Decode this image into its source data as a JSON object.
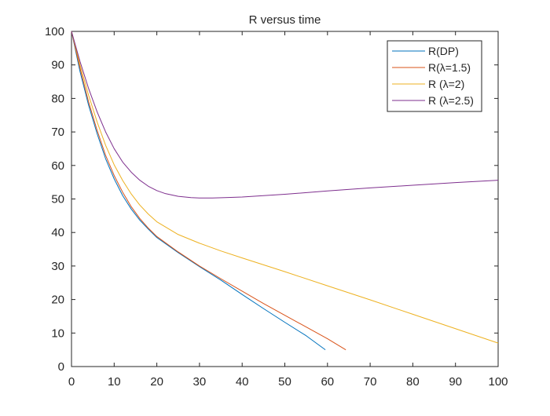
{
  "chart_data": {
    "type": "line",
    "title": "R versus time",
    "xlabel": "",
    "ylabel": "",
    "xlim": [
      0,
      100
    ],
    "ylim": [
      0,
      100
    ],
    "xticks": [
      0,
      10,
      20,
      30,
      40,
      50,
      60,
      70,
      80,
      90,
      100
    ],
    "yticks": [
      0,
      10,
      20,
      30,
      40,
      50,
      60,
      70,
      80,
      90,
      100
    ],
    "grid": false,
    "legend_position": "top-right",
    "series": [
      {
        "name": "R(DP)",
        "color": "#0072BD",
        "x": [
          0,
          2,
          4,
          6,
          8,
          10,
          12,
          14,
          16,
          18,
          20,
          25,
          30,
          35,
          40,
          45,
          50,
          55,
          59.5
        ],
        "y": [
          100,
          88,
          78,
          69.5,
          62,
          56,
          51,
          47,
          43.7,
          41,
          38.5,
          34,
          29.8,
          25.8,
          21.5,
          17.3,
          13.2,
          9.2,
          5
        ]
      },
      {
        "name": "R(λ=1.5)",
        "color": "#D95319",
        "x": [
          0,
          2,
          4,
          6,
          8,
          10,
          12,
          14,
          16,
          18,
          20,
          25,
          30,
          35,
          40,
          45,
          50,
          55,
          60,
          64.3
        ],
        "y": [
          100,
          89,
          79,
          70.5,
          63,
          57,
          52,
          47.7,
          44.2,
          41.3,
          38.8,
          34.2,
          30,
          26.2,
          22.5,
          18.8,
          15.3,
          11.8,
          8.3,
          5
        ]
      },
      {
        "name": "R (λ=2)",
        "color": "#EDB120",
        "x": [
          0,
          2,
          4,
          6,
          8,
          10,
          12,
          14,
          16,
          18,
          20,
          25,
          30,
          35,
          40,
          50,
          60,
          70,
          80,
          90,
          100
        ],
        "y": [
          100,
          90,
          81,
          73,
          66,
          60.2,
          55.5,
          51.5,
          48.2,
          45.5,
          43.2,
          39.4,
          36.8,
          34.5,
          32.4,
          28.3,
          24.1,
          19.9,
          15.6,
          11.3,
          7
        ]
      },
      {
        "name": "R (λ=2.5)",
        "color": "#7E2F8E",
        "x": [
          0,
          2,
          4,
          6,
          8,
          10,
          12,
          14,
          16,
          18,
          20,
          22,
          25,
          28,
          30,
          33,
          36,
          40,
          50,
          60,
          70,
          80,
          90,
          100
        ],
        "y": [
          100,
          91,
          83,
          76,
          70,
          65,
          61,
          58,
          55.6,
          53.8,
          52.5,
          51.6,
          50.8,
          50.4,
          50.3,
          50.3,
          50.4,
          50.6,
          51.4,
          52.4,
          53.3,
          54.1,
          54.9,
          55.6
        ]
      }
    ]
  }
}
